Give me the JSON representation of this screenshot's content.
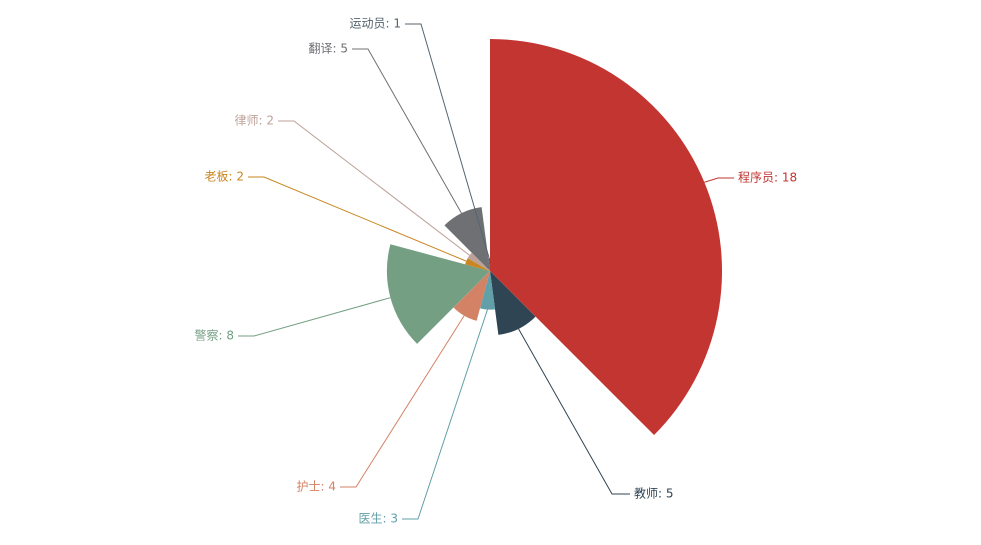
{
  "chart_data": {
    "type": "pie",
    "title": "",
    "rose_type": "radius",
    "series": [
      {
        "slices": [
          {
            "name": "程序员",
            "value": 18,
            "color": "#c23531"
          },
          {
            "name": "教师",
            "value": 5,
            "color": "#2f4554"
          },
          {
            "name": "医生",
            "value": 3,
            "color": "#61a0a8"
          },
          {
            "name": "护士",
            "value": 4,
            "color": "#d48265"
          },
          {
            "name": "警察",
            "value": 8,
            "color": "#749f83"
          },
          {
            "name": "老板",
            "value": 2,
            "color": "#ca8622"
          },
          {
            "name": "律师",
            "value": 2,
            "color": "#bda29a"
          },
          {
            "name": "翻译",
            "value": 5,
            "color": "#6e7074"
          },
          {
            "name": "运动员",
            "value": 1,
            "color": "#546570"
          }
        ]
      }
    ],
    "label_format": "{name}: {value}"
  }
}
